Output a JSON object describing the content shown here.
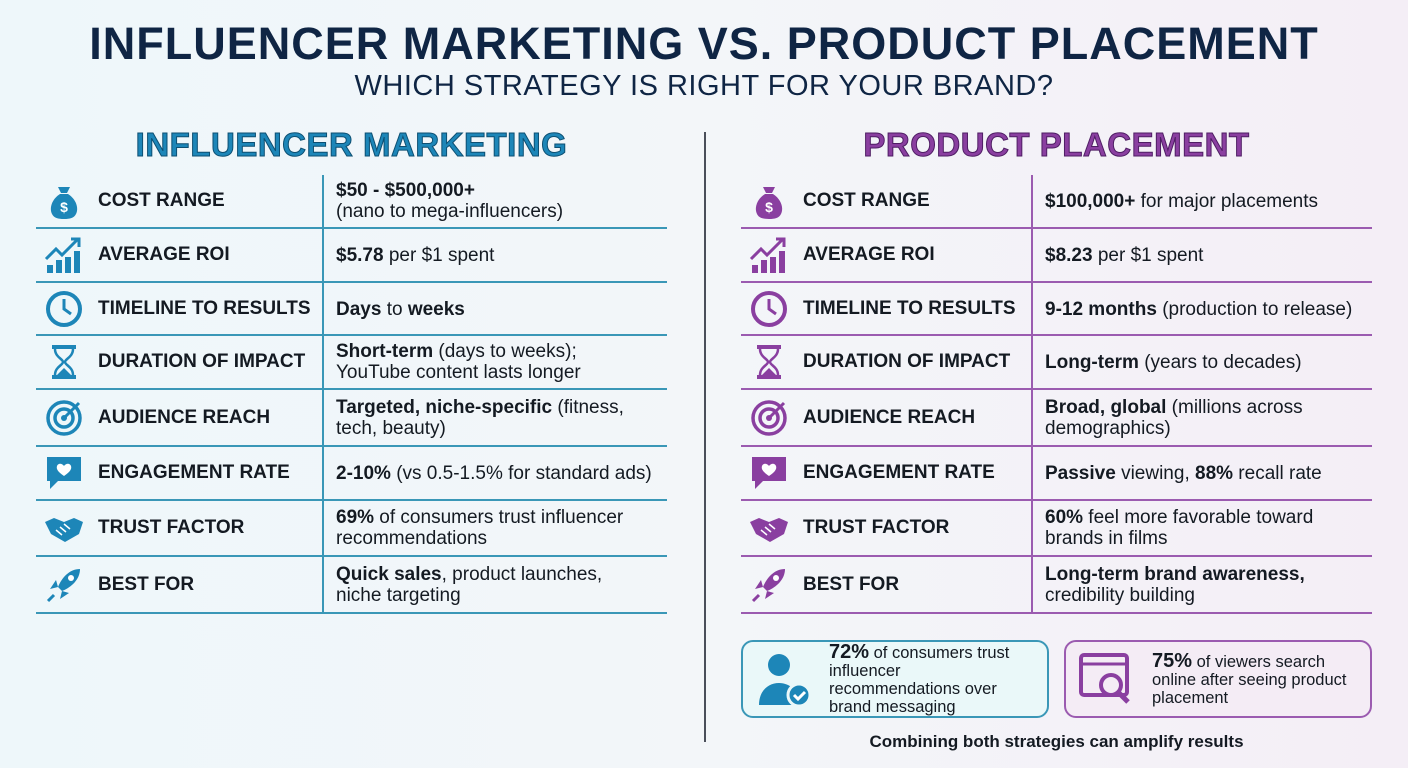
{
  "header": {
    "title": "INFLUENCER MARKETING VS. PRODUCT PLACEMENT",
    "subtitle": "WHICH STRATEGY IS RIGHT FOR YOUR BRAND?"
  },
  "colors": {
    "influencer": "#1d86b8",
    "placement": "#8a3fa0",
    "title": "#0f2544"
  },
  "sections": [
    {
      "title": "INFLUENCER MARKETING",
      "rows": [
        {
          "icon": "money-bag-icon",
          "label": "COST RANGE",
          "lines": [
            [
              {
                "b": "$50 - $500,000+"
              }
            ],
            [
              {
                "t": "(nano to mega-influencers)"
              }
            ]
          ]
        },
        {
          "icon": "growth-chart-icon",
          "label": "AVERAGE ROI",
          "lines": [
            [
              {
                "b": "$5.78"
              },
              {
                "t": " per $1 spent"
              }
            ]
          ]
        },
        {
          "icon": "clock-icon",
          "label": "TIMELINE TO RESULTS",
          "lines": [
            [
              {
                "b": "Days"
              },
              {
                "t": " to "
              },
              {
                "b": "weeks"
              }
            ]
          ]
        },
        {
          "icon": "hourglass-icon",
          "label": "DURATION OF IMPACT",
          "lines": [
            [
              {
                "b": "Short-term"
              },
              {
                "t": " (days to weeks);"
              }
            ],
            [
              {
                "t": "YouTube content lasts longer"
              }
            ]
          ]
        },
        {
          "icon": "target-icon",
          "label": "AUDIENCE REACH",
          "lines": [
            [
              {
                "b": "Targeted, niche-specific"
              },
              {
                "t": " (fitness,"
              }
            ],
            [
              {
                "t": "tech, beauty)"
              }
            ]
          ]
        },
        {
          "icon": "heart-chat-icon",
          "label": "ENGAGEMENT RATE",
          "lines": [
            [
              {
                "b": "2-10%"
              },
              {
                "t": " (vs 0.5-1.5% for standard ads)"
              }
            ]
          ]
        },
        {
          "icon": "handshake-icon",
          "label": "TRUST FACTOR",
          "lines": [
            [
              {
                "b": "69%"
              },
              {
                "t": " of consumers trust influencer"
              }
            ],
            [
              {
                "t": "recommendations"
              }
            ]
          ]
        },
        {
          "icon": "rocket-icon",
          "label": "BEST FOR",
          "lines": [
            [
              {
                "b": "Quick sales"
              },
              {
                "t": ", product launches,"
              }
            ],
            [
              {
                "t": "niche targeting"
              }
            ]
          ]
        }
      ],
      "callout": {
        "icon": "verified-user-icon",
        "bold": "72%",
        "text": " of consumers trust influencer recommendations over brand messaging"
      }
    },
    {
      "title": "PRODUCT PLACEMENT",
      "rows": [
        {
          "icon": "money-bag-icon",
          "label": "COST RANGE",
          "lines": [
            [
              {
                "b": "$100,000+"
              },
              {
                "t": " for major placements"
              }
            ]
          ]
        },
        {
          "icon": "growth-chart-icon",
          "label": "AVERAGE ROI",
          "lines": [
            [
              {
                "b": "$8.23"
              },
              {
                "t": " per $1 spent"
              }
            ]
          ]
        },
        {
          "icon": "clock-icon",
          "label": "TIMELINE TO RESULTS",
          "lines": [
            [
              {
                "b": "9-12 months"
              },
              {
                "t": " (production to release)"
              }
            ]
          ]
        },
        {
          "icon": "hourglass-icon",
          "label": "DURATION OF IMPACT",
          "lines": [
            [
              {
                "b": "Long-term"
              },
              {
                "t": " (years to decades)"
              }
            ]
          ]
        },
        {
          "icon": "target-icon",
          "label": "AUDIENCE REACH",
          "lines": [
            [
              {
                "b": "Broad, global"
              },
              {
                "t": " (millions across"
              }
            ],
            [
              {
                "t": "demographics)"
              }
            ]
          ]
        },
        {
          "icon": "heart-chat-icon",
          "label": "ENGAGEMENT RATE",
          "lines": [
            [
              {
                "b": "Passive"
              },
              {
                "t": " viewing, "
              },
              {
                "b": "88%"
              },
              {
                "t": " recall rate"
              }
            ]
          ]
        },
        {
          "icon": "handshake-icon",
          "label": "TRUST FACTOR",
          "lines": [
            [
              {
                "b": "60%"
              },
              {
                "t": " feel more favorable toward"
              }
            ],
            [
              {
                "t": "brands in films"
              }
            ]
          ]
        },
        {
          "icon": "rocket-icon",
          "label": "BEST FOR",
          "lines": [
            [
              {
                "b": "Long-term brand awareness,"
              }
            ],
            [
              {
                "t": "credibility building"
              }
            ]
          ]
        }
      ],
      "callout": {
        "icon": "browser-search-icon",
        "bold": "75%",
        "text": " of viewers search online after seeing product placement"
      }
    }
  ],
  "footer": "Combining both strategies can amplify results"
}
